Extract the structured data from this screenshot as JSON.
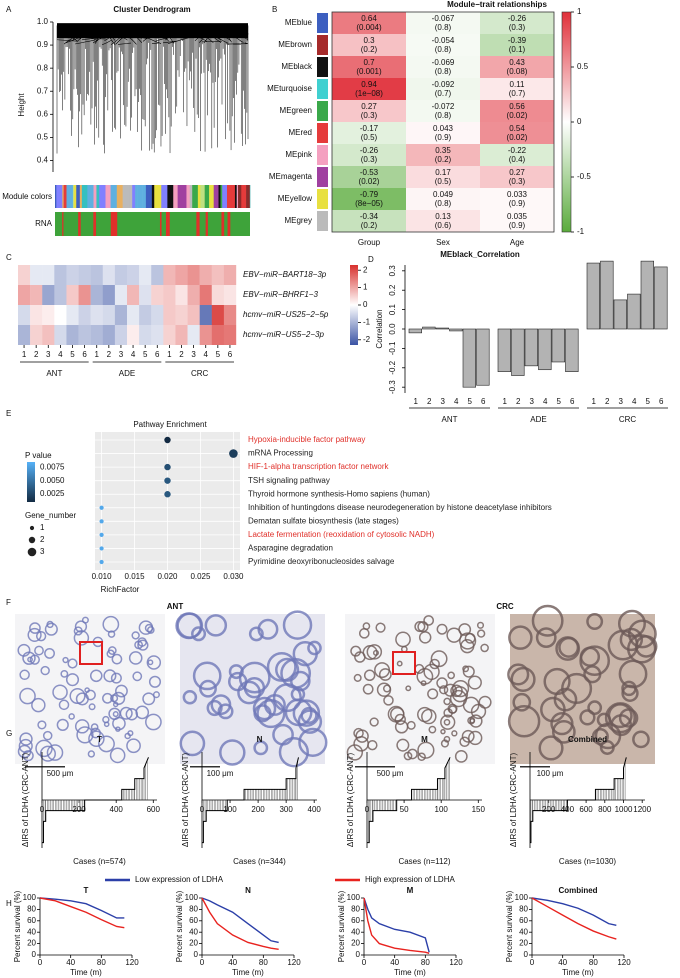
{
  "chart_data": [
    {
      "type": "dendrogram",
      "panel": "A",
      "title": "Cluster Dendrogram",
      "ylabel": "Height",
      "ylim": [
        0.35,
        1.0
      ],
      "yticks": [
        0.4,
        0.5,
        0.6,
        0.7,
        0.8,
        0.9,
        {
          "value": 1.0,
          "label": "1.0"
        }
      ],
      "strip_labels": [
        "Module colors",
        "RNA"
      ],
      "module_colors": [
        "#3d5fc0",
        "#8b2b2b",
        "#111111",
        "#35c0c0",
        "#3aa84a",
        "#e53b3b",
        "#f4a0c0",
        "#a040a0",
        "#e8e040",
        "#bbbbbb",
        "#e8b060",
        "#5fb0e0",
        "#8080ff",
        "#c0e080"
      ],
      "trait_colors": [
        "#3ea33a",
        "#e0302a"
      ]
    },
    {
      "type": "heatmap_annotated",
      "panel": "B",
      "title": "Module−trait relationships",
      "rows": [
        "MEblue",
        "MEbrown",
        "MEblack",
        "MEturquoise",
        "MEgreen",
        "MEred",
        "MEpink",
        "MEmagenta",
        "MEyellow",
        "MEgrey"
      ],
      "row_colors": [
        "#3d5fc0",
        "#a52a2a",
        "#111111",
        "#40d0d0",
        "#3aa84a",
        "#e53b3b",
        "#f4a0c0",
        "#a040a0",
        "#e8e040",
        "#bbbbbb"
      ],
      "columns": [
        "Group",
        "Sex",
        "Age"
      ],
      "values": [
        [
          0.64,
          -0.067,
          -0.26
        ],
        [
          0.3,
          -0.054,
          -0.39
        ],
        [
          0.7,
          -0.069,
          0.43
        ],
        [
          0.94,
          -0.092,
          0.11
        ],
        [
          0.27,
          -0.072,
          0.56
        ],
        [
          -0.17,
          0.043,
          0.54
        ],
        [
          -0.26,
          0.35,
          -0.22
        ],
        [
          -0.53,
          0.17,
          0.27
        ],
        [
          -0.79,
          0.049,
          0.033
        ],
        [
          -0.34,
          0.13,
          0.035
        ]
      ],
      "p_labels": [
        [
          "(0.004)",
          "(0.8)",
          "(0.3)"
        ],
        [
          "(0.2)",
          "(0.8)",
          "(0.1)"
        ],
        [
          "(0.001)",
          "(0.8)",
          "(0.08)"
        ],
        [
          "(1e−08)",
          "(0.7)",
          "(0.7)"
        ],
        [
          "(0.3)",
          "(0.8)",
          "(0.02)"
        ],
        [
          "(0.5)",
          "(0.9)",
          "(0.02)"
        ],
        [
          "(0.3)",
          "(0.2)",
          "(0.4)"
        ],
        [
          "(0.02)",
          "(0.5)",
          "(0.3)"
        ],
        [
          "(8e−05)",
          "(0.8)",
          "(0.9)"
        ],
        [
          "(0.2)",
          "(0.6)",
          "(0.9)"
        ]
      ],
      "zlim": [
        -1,
        1
      ],
      "colorbar_ticks": [
        1,
        0.5,
        0,
        -0.5,
        -1
      ],
      "colors": [
        "#5aab3c",
        "#ffffff",
        "#e0303a"
      ]
    },
    {
      "type": "heatmap",
      "panel": "C",
      "rows": [
        "EBV−miR−BART18−3p",
        "EBV−miR−BHRF1−3",
        "hcmv−miR−US25−2−5p",
        "hcmv−miR−US5−2−3p"
      ],
      "categories": [
        "1",
        "2",
        "3",
        "4",
        "5",
        "6",
        "1",
        "2",
        "3",
        "4",
        "5",
        "6",
        "1",
        "2",
        "3",
        "4",
        "5",
        "6"
      ],
      "groups": [
        "ANT",
        "ADE",
        "CRC"
      ],
      "values": [
        [
          0.5,
          -0.3,
          -0.3,
          -0.8,
          -0.6,
          -0.7,
          -0.8,
          -0.4,
          -0.7,
          -0.6,
          -0.3,
          -0.8,
          0.8,
          1.0,
          1.2,
          0.9,
          0.7,
          0.9
        ],
        [
          1.0,
          0.8,
          -1.2,
          -0.8,
          0.6,
          1.2,
          -1.0,
          -1.3,
          -0.3,
          0.8,
          -0.4,
          0.5,
          0.6,
          0.3,
          0.9,
          1.5,
          0.4,
          0.3
        ],
        [
          -0.5,
          0.3,
          0.2,
          0,
          -0.3,
          -0.6,
          -0.4,
          -0.5,
          -1.0,
          -0.3,
          -0.7,
          -0.5,
          0.6,
          0.5,
          0.7,
          -1.8,
          2.0,
          1.3
        ],
        [
          -1.0,
          0.5,
          0.7,
          -0.5,
          -1.0,
          -0.8,
          -0.9,
          -1.1,
          -0.6,
          0.2,
          -0.5,
          -0.4,
          0.5,
          0.8,
          -0.3,
          1.2,
          1.6,
          1.5
        ]
      ],
      "zlim": [
        -2.3,
        2.3
      ],
      "colorbar_ticks": [
        2,
        1,
        0,
        -1,
        -2
      ],
      "colors": [
        "#3b54a4",
        "#ffffff",
        "#d7302d"
      ]
    },
    {
      "type": "bar",
      "panel": "D",
      "title": "MEblack_Correlation",
      "ylabel": "Correlation",
      "categories": [
        "1",
        "2",
        "3",
        "4",
        "5",
        "6",
        "1",
        "2",
        "3",
        "4",
        "5",
        "6",
        "1",
        "2",
        "3",
        "4",
        "5",
        "6"
      ],
      "groups": [
        "ANT",
        "ADE",
        "CRC"
      ],
      "values": [
        -0.02,
        0.01,
        0.005,
        -0.01,
        -0.3,
        -0.29,
        -0.22,
        -0.24,
        -0.19,
        -0.21,
        -0.17,
        -0.22,
        0.34,
        0.35,
        0.15,
        0.18,
        0.35,
        0.32
      ],
      "ylim": [
        -0.33,
        0.33
      ],
      "yticks": [
        -0.3,
        -0.2,
        -0.1,
        {
          "value": 0,
          "label": "0.0"
        },
        0.1,
        0.2,
        0.3
      ],
      "color": "#b3b3b3"
    },
    {
      "type": "dot",
      "panel": "E",
      "title": "Pathway Enrichment",
      "xlabel": "RichFactor",
      "categories": [
        "Hypoxia-inducible factor pathway",
        "mRNA Processing",
        "HIF-1-alpha transcription factor network",
        "TSH signaling pathway",
        "Thyroid hormone synthesis-Homo sapiens (human)",
        "Inhibition of huntingdons disease neurodegeneration by histone deacetylase inhibitors",
        "Dematan sulfate biosynthesis (late stages)",
        "Lactate fermentation (reoxidation of cytosolic NADH)",
        "Asparagine degradation",
        "Pyrimidine deoxyribonucleosides salvage"
      ],
      "label_colors": [
        "#e0302a",
        "#222222",
        "#e0302a",
        "#222222",
        "#222222",
        "#222222",
        "#222222",
        "#e0302a",
        "#222222",
        "#222222"
      ],
      "rich_factor": [
        0.02,
        0.03,
        0.02,
        0.02,
        0.02,
        0.01,
        0.01,
        0.01,
        0.01,
        0.01
      ],
      "gene_number": [
        2,
        3,
        2,
        2,
        2,
        1,
        1,
        1,
        1,
        1
      ],
      "p_values": [
        0.001,
        0.002,
        0.003,
        0.0035,
        0.0035,
        0.008,
        0.008,
        0.008,
        0.008,
        0.008
      ],
      "xlim": [
        0.009,
        0.031
      ],
      "xticks": [
        {
          "value": 0.01,
          "label": "0.010"
        },
        0.015,
        {
          "value": 0.02,
          "label": "0.020"
        },
        0.025,
        {
          "value": 0.03,
          "label": "0.030"
        }
      ],
      "color_title": "P value",
      "color_range": [
        0.001,
        0.0085
      ],
      "color_ticks": [
        0.0075,
        {
          "value": 0.005,
          "label": "0.0050"
        },
        0.0025
      ],
      "colors": [
        "#132b43",
        "#56b1f7"
      ],
      "size_title": "Gene_number",
      "size_ticks": [
        1,
        2,
        3
      ]
    },
    {
      "type": "image",
      "panel": "F",
      "title": "ANT",
      "scale_labels": [
        "500 μm",
        "100 μm"
      ],
      "stain": "#6f78b8"
    },
    {
      "type": "image",
      "title": "CRC",
      "scale_labels": [
        "500 μm",
        "100 μm"
      ],
      "stain": "#6d5a58"
    },
    {
      "type": "step",
      "panel": "G",
      "title": "T",
      "xlabel": "Cases (n=574)",
      "ylabel": "ΔIRS of LDHA (CRC-ANT)",
      "x": [
        0,
        8,
        8,
        20,
        20,
        230,
        230,
        430,
        430,
        500,
        500,
        550,
        550,
        574
      ],
      "values": [
        -4,
        -4,
        -2,
        -2,
        -1,
        -1,
        0,
        0,
        1,
        1,
        2,
        2,
        3,
        4
      ],
      "xlim": [
        0,
        620
      ],
      "xticks": [
        0,
        200,
        400,
        600
      ],
      "ylim": [
        -4.5,
        4.5
      ]
    },
    {
      "type": "step",
      "title": "N",
      "xlabel": "Cases (n=344)",
      "ylabel": "ΔIRS of LDHA (CRC-ANT)",
      "x": [
        0,
        5,
        5,
        15,
        15,
        90,
        90,
        150,
        150,
        300,
        300,
        335,
        335,
        344
      ],
      "values": [
        -4,
        -4,
        -2,
        -2,
        -1,
        -1,
        0,
        0,
        1,
        1,
        2,
        2,
        3,
        4
      ],
      "xlim": [
        0,
        410
      ],
      "xticks": [
        0,
        100,
        200,
        300,
        400
      ],
      "ylim": [
        -4.5,
        4.5
      ]
    },
    {
      "type": "step",
      "title": "M",
      "xlabel": "Cases (n=112)",
      "ylabel": "ΔIRS of LDHA (CRC-ANT)",
      "x": [
        0,
        3,
        3,
        8,
        8,
        40,
        40,
        60,
        60,
        95,
        95,
        105,
        105,
        112
      ],
      "values": [
        -4,
        -4,
        -2,
        -2,
        -1,
        -1,
        0,
        0,
        1,
        1,
        2,
        2,
        3,
        4
      ],
      "xlim": [
        0,
        155
      ],
      "xticks": [
        0,
        50,
        100,
        150
      ],
      "ylim": [
        -4.5,
        4.5
      ]
    },
    {
      "type": "step",
      "title": "Combined",
      "xlabel": "Cases (n=1030)",
      "ylabel": "ΔIRS of LDHA (CRC-ANT)",
      "x": [
        0,
        10,
        10,
        30,
        30,
        400,
        400,
        700,
        700,
        900,
        900,
        1000,
        1000,
        1030
      ],
      "values": [
        -4,
        -4,
        -2,
        -2,
        -1,
        -1,
        0,
        0,
        1,
        1,
        2,
        2,
        3,
        4
      ],
      "xlim": [
        0,
        1230
      ],
      "xticks": [
        200,
        400,
        600,
        800,
        1000,
        1200
      ],
      "ylim": [
        -4.5,
        4.5
      ]
    },
    {
      "type": "survival",
      "panel": "H",
      "title": "T",
      "xlabel": "Time (m)",
      "ylabel": "Percent survival (%)",
      "x": [
        0,
        20,
        40,
        60,
        80,
        100,
        110
      ],
      "series": [
        {
          "name": "Low expression of LDHA",
          "color": "#2b3fa8",
          "values": [
            100,
            98,
            95,
            90,
            78,
            65,
            65
          ]
        },
        {
          "name": "High expression of LDHA",
          "color": "#e8231f",
          "values": [
            100,
            95,
            85,
            75,
            62,
            50,
            48
          ]
        }
      ],
      "xlim": [
        0,
        120
      ],
      "xticks": [
        0,
        40,
        80,
        120
      ],
      "ylim": [
        0,
        100
      ],
      "yticks": [
        0,
        20,
        40,
        60,
        80,
        100
      ]
    },
    {
      "type": "survival",
      "title": "N",
      "xlabel": "Time (m)",
      "ylabel": "Percent survival (%)",
      "x": [
        0,
        10,
        20,
        40,
        60,
        80,
        90,
        100
      ],
      "series": [
        {
          "color": "#2b3fa8",
          "values": [
            100,
            95,
            88,
            75,
            55,
            35,
            25,
            22
          ]
        },
        {
          "color": "#e8231f",
          "values": [
            100,
            75,
            55,
            35,
            22,
            15,
            12,
            10
          ]
        }
      ],
      "xlim": [
        0,
        120
      ],
      "xticks": [
        0,
        40,
        80,
        120
      ],
      "ylim": [
        0,
        100
      ],
      "yticks": [
        0,
        20,
        40,
        60,
        80,
        100
      ]
    },
    {
      "type": "survival",
      "title": "M",
      "xlabel": "Time (m)",
      "ylabel": "Percent survival (%)",
      "x": [
        0,
        5,
        10,
        20,
        40,
        60,
        80,
        85
      ],
      "series": [
        {
          "color": "#2b3fa8",
          "values": [
            100,
            80,
            65,
            55,
            45,
            40,
            30,
            5
          ]
        },
        {
          "color": "#e8231f",
          "values": [
            100,
            60,
            35,
            20,
            12,
            8,
            5,
            3
          ]
        }
      ],
      "xlim": [
        0,
        120
      ],
      "xticks": [
        0,
        40,
        80,
        120
      ],
      "ylim": [
        0,
        100
      ],
      "yticks": [
        0,
        20,
        40,
        60,
        80,
        100
      ]
    },
    {
      "type": "survival",
      "title": "Combined",
      "xlabel": "Time (m)",
      "ylabel": "Percent survival (%)",
      "x": [
        0,
        20,
        40,
        60,
        80,
        100,
        110
      ],
      "series": [
        {
          "color": "#2b3fa8",
          "values": [
            100,
            96,
            90,
            82,
            70,
            55,
            52
          ]
        },
        {
          "color": "#e8231f",
          "values": [
            100,
            85,
            70,
            55,
            42,
            32,
            28
          ]
        }
      ],
      "xlim": [
        0,
        120
      ],
      "xticks": [
        0,
        40,
        80,
        120
      ],
      "ylim": [
        0,
        100
      ],
      "yticks": [
        0,
        20,
        40,
        60,
        80,
        100
      ]
    }
  ]
}
